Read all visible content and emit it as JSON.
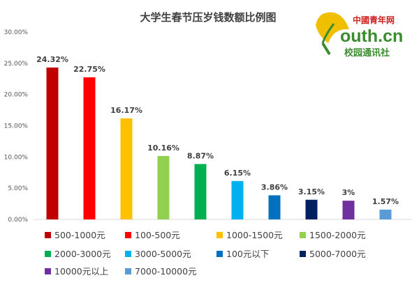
{
  "chart_data": {
    "type": "bar",
    "title": "大学生春节压岁钱数额比例图",
    "xlabel": "",
    "ylabel": "",
    "ylim": [
      0,
      30
    ],
    "y_ticks": [
      "0.00%",
      "5.00%",
      "10.00%",
      "15.00%",
      "20.00%",
      "25.00%",
      "30.00%"
    ],
    "grid": false,
    "legend_position": "bottom",
    "series": [
      {
        "name": "500-1000元",
        "value": 24.32,
        "label": "24.32%",
        "color": "#c00000"
      },
      {
        "name": "100-500元",
        "value": 22.75,
        "label": "22.75%",
        "color": "#ff0000"
      },
      {
        "name": "1000-1500元",
        "value": 16.17,
        "label": "16.17%",
        "color": "#ffc000"
      },
      {
        "name": "1500-2000元",
        "value": 10.16,
        "label": "10.16%",
        "color": "#92d050"
      },
      {
        "name": "2000-3000元",
        "value": 8.87,
        "label": "8.87%",
        "color": "#00b050"
      },
      {
        "name": "3000-5000元",
        "value": 6.15,
        "label": "6.15%",
        "color": "#00b0f0"
      },
      {
        "name": "100元以下",
        "value": 3.86,
        "label": "3.86%",
        "color": "#0070c0"
      },
      {
        "name": "5000-7000元",
        "value": 3.15,
        "label": "3.15%",
        "color": "#002060"
      },
      {
        "name": "10000元以上",
        "value": 3,
        "label": "3%",
        "color": "#7030a0"
      },
      {
        "name": "7000-10000元",
        "value": 1.57,
        "label": "1.57%",
        "color": "#5b9bd5"
      }
    ]
  },
  "logo": {
    "top": "中國青年网",
    "brand": "outh.cn",
    "sub": "校园通讯社",
    "colors": {
      "red": "#d0201d",
      "green": "#3a8c2f",
      "yellow": "#f0c000"
    }
  }
}
